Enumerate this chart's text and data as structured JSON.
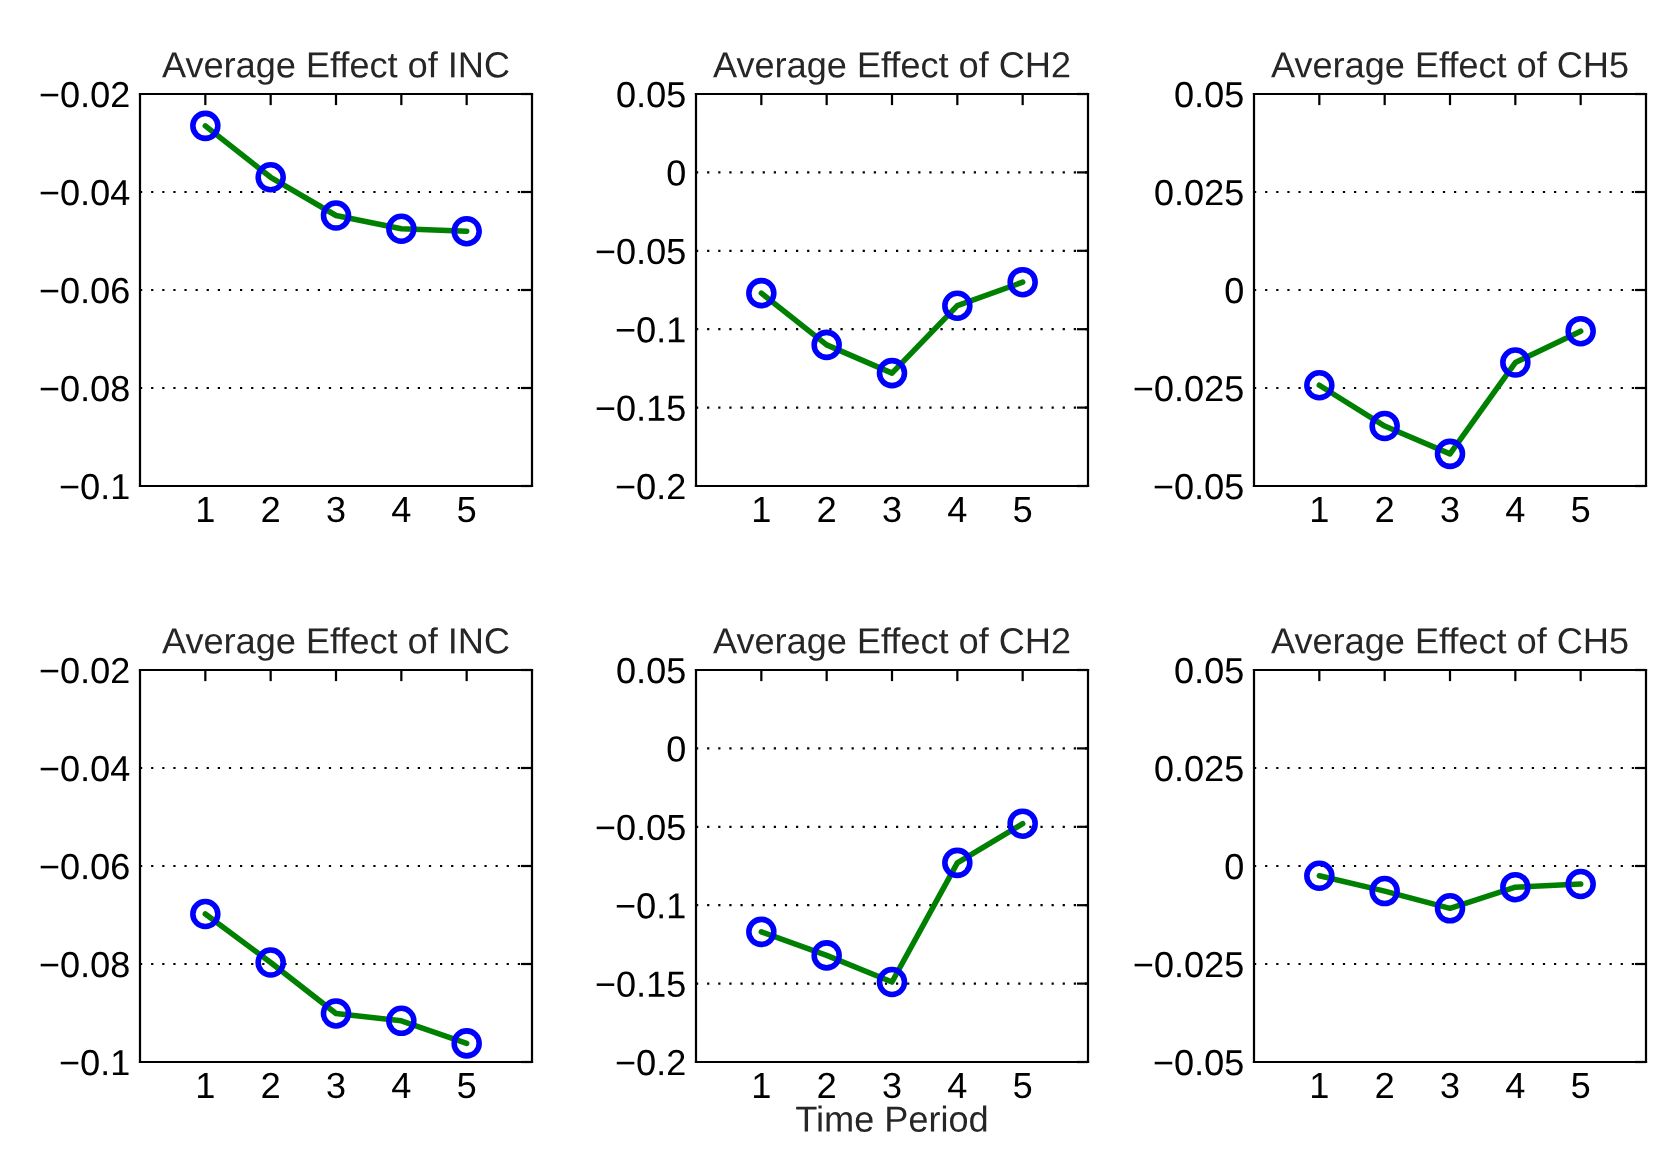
{
  "chart_data": [
    {
      "type": "line",
      "title": "Average Effect of INC",
      "x": [
        1,
        2,
        3,
        4,
        5
      ],
      "xlim": [
        0,
        6
      ],
      "xticks": [
        1,
        2,
        3,
        4,
        5
      ],
      "ylim": [
        -0.1,
        -0.02
      ],
      "yticks": [
        {
          "value": -0.1,
          "label": "−0.1"
        },
        {
          "value": -0.08,
          "label": "−0.08"
        },
        {
          "value": -0.06,
          "label": "−0.06"
        },
        {
          "value": -0.04,
          "label": "−0.04"
        },
        {
          "value": -0.02,
          "label": "−0.02"
        }
      ],
      "grid": "y",
      "marker": "circle",
      "line_style": "solid",
      "series": [
        {
          "color": "#008000",
          "colors": [
            "#0000ff",
            "#0000ff",
            "#0000ff",
            "#0000ff",
            "#0000ff"
          ],
          "values": [
            -0.0265,
            -0.037,
            -0.0448,
            -0.0475,
            -0.048
          ]
        }
      ]
    },
    {
      "type": "line",
      "title": "Average Effect of CH2",
      "x": [
        1,
        2,
        3,
        4,
        5
      ],
      "xlim": [
        0,
        6
      ],
      "xticks": [
        1,
        2,
        3,
        4,
        5
      ],
      "ylim": [
        -0.2,
        0.05
      ],
      "yticks": [
        {
          "value": -0.2,
          "label": "−0.2"
        },
        {
          "value": -0.15,
          "label": "−0.15"
        },
        {
          "value": -0.1,
          "label": "−0.1"
        },
        {
          "value": -0.05,
          "label": "−0.05"
        },
        0,
        0.05
      ],
      "grid": "y",
      "marker": "circle",
      "line_style": "solid",
      "series": [
        {
          "color": "#008000",
          "colors": [
            "#0000ff",
            "#0000ff",
            "#0000ff",
            "#0000ff",
            "#0000ff"
          ],
          "values": [
            -0.077,
            -0.11,
            -0.128,
            -0.085,
            -0.07
          ]
        }
      ]
    },
    {
      "type": "line",
      "title": "Average Effect of CH5",
      "x": [
        1,
        2,
        3,
        4,
        5
      ],
      "xlim": [
        0,
        6
      ],
      "xticks": [
        1,
        2,
        3,
        4,
        5
      ],
      "ylim": [
        -0.05,
        0.05
      ],
      "yticks": [
        {
          "value": -0.05,
          "label": "−0.05"
        },
        {
          "value": -0.025,
          "label": "−0.025"
        },
        0,
        0.025,
        0.05
      ],
      "grid": "y",
      "marker": "circle",
      "line_style": "solid",
      "series": [
        {
          "color": "#008000",
          "colors": [
            "#0000ff",
            "#0000ff",
            "#0000ff",
            "#0000ff",
            "#0000ff"
          ],
          "values": [
            -0.0243,
            -0.0347,
            -0.0418,
            -0.0185,
            -0.0105
          ]
        }
      ]
    },
    {
      "type": "line",
      "title": "Average Effect of INC",
      "x": [
        1,
        2,
        3,
        4,
        5
      ],
      "xlim": [
        0,
        6
      ],
      "xticks": [
        1,
        2,
        3,
        4,
        5
      ],
      "ylim": [
        -0.1,
        -0.02
      ],
      "yticks": [
        {
          "value": -0.1,
          "label": "−0.1"
        },
        {
          "value": -0.08,
          "label": "−0.08"
        },
        {
          "value": -0.06,
          "label": "−0.06"
        },
        {
          "value": -0.04,
          "label": "−0.04"
        },
        {
          "value": -0.02,
          "label": "−0.02"
        }
      ],
      "grid": "y",
      "marker": "circle",
      "line_style": "solid",
      "series": [
        {
          "color": "#008000",
          "colors": [
            "#0000ff",
            "#0000ff",
            "#0000ff",
            "#0000ff",
            "#0000ff"
          ],
          "values": [
            -0.0698,
            -0.0797,
            -0.0901,
            -0.0916,
            -0.0962
          ]
        }
      ]
    },
    {
      "type": "line",
      "title": "Average Effect of CH2",
      "xlabel": "Time Period",
      "x": [
        1,
        2,
        3,
        4,
        5
      ],
      "xlim": [
        0,
        6
      ],
      "xticks": [
        1,
        2,
        3,
        4,
        5
      ],
      "ylim": [
        -0.2,
        0.05
      ],
      "yticks": [
        {
          "value": -0.2,
          "label": "−0.2"
        },
        {
          "value": -0.15,
          "label": "−0.15"
        },
        {
          "value": -0.1,
          "label": "−0.1"
        },
        {
          "value": -0.05,
          "label": "−0.05"
        },
        0,
        0.05
      ],
      "grid": "y",
      "marker": "circle",
      "line_style": "solid",
      "series": [
        {
          "color": "#008000",
          "colors": [
            "#0000ff",
            "#0000ff",
            "#0000ff",
            "#0000ff",
            "#0000ff"
          ],
          "values": [
            -0.117,
            -0.132,
            -0.149,
            -0.073,
            -0.048
          ]
        }
      ]
    },
    {
      "type": "line",
      "title": "Average Effect of CH5",
      "x": [
        1,
        2,
        3,
        4,
        5
      ],
      "xlim": [
        0,
        6
      ],
      "xticks": [
        1,
        2,
        3,
        4,
        5
      ],
      "ylim": [
        -0.05,
        0.05
      ],
      "yticks": [
        {
          "value": -0.05,
          "label": "−0.05"
        },
        {
          "value": -0.025,
          "label": "−0.025"
        },
        0,
        0.025,
        0.05
      ],
      "grid": "y",
      "marker": "circle",
      "line_style": "solid",
      "series": [
        {
          "color": "#008000",
          "colors": [
            "#0000ff",
            "#0000ff",
            "#0000ff",
            "#0000ff",
            "#0000ff"
          ],
          "values": [
            -0.0025,
            -0.0064,
            -0.0108,
            -0.0054,
            -0.0046
          ]
        }
      ]
    }
  ]
}
